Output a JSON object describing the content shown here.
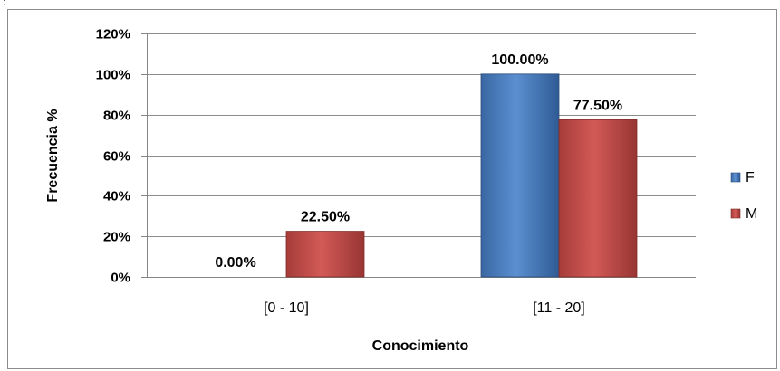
{
  "stray_mark": ":",
  "chart_data": {
    "type": "bar",
    "title": "",
    "xlabel": "Conocimiento",
    "ylabel": "Frecuencia %",
    "categories": [
      "[0 - 10]",
      "[11 - 20]"
    ],
    "ylim": [
      0,
      120
    ],
    "yticks": [
      "0%",
      "20%",
      "40%",
      "60%",
      "80%",
      "100%",
      "120%"
    ],
    "grid": true,
    "legend_position": "right",
    "series": [
      {
        "name": "F",
        "values": [
          0,
          100
        ],
        "labels": [
          "0.00%",
          "100.00%"
        ],
        "color": "#4a7ebb"
      },
      {
        "name": "M",
        "values": [
          22.5,
          77.5
        ],
        "labels": [
          "22.50%",
          "77.50%"
        ],
        "color": "#be4b48"
      }
    ]
  }
}
